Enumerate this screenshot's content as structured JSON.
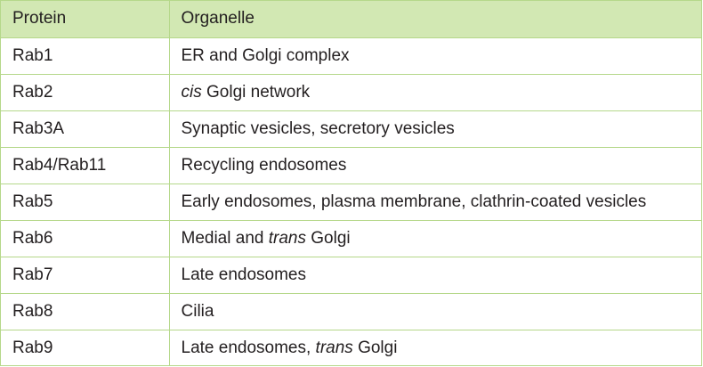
{
  "table": {
    "headers": {
      "protein": "Protein",
      "organelle": "Organelle"
    },
    "rows": [
      {
        "protein": "Rab1",
        "organelle": [
          {
            "text": "ER and Golgi complex"
          }
        ]
      },
      {
        "protein": "Rab2",
        "organelle": [
          {
            "text": "cis",
            "italic": true
          },
          {
            "text": " Golgi network"
          }
        ]
      },
      {
        "protein": "Rab3A",
        "organelle": [
          {
            "text": "Synaptic vesicles, secretory vesicles"
          }
        ]
      },
      {
        "protein": "Rab4/Rab11",
        "organelle": [
          {
            "text": "Recycling endosomes"
          }
        ]
      },
      {
        "protein": "Rab5",
        "organelle": [
          {
            "text": "Early endosomes, plasma membrane, clathrin-coated vesicles"
          }
        ]
      },
      {
        "protein": "Rab6",
        "organelle": [
          {
            "text": "Medial and "
          },
          {
            "text": "trans",
            "italic": true
          },
          {
            "text": " Golgi"
          }
        ]
      },
      {
        "protein": "Rab7",
        "organelle": [
          {
            "text": "Late endosomes"
          }
        ]
      },
      {
        "protein": "Rab8",
        "organelle": [
          {
            "text": "Cilia"
          }
        ]
      },
      {
        "protein": "Rab9",
        "organelle": [
          {
            "text": "Late endosomes, "
          },
          {
            "text": "trans",
            "italic": true
          },
          {
            "text": " Golgi"
          }
        ]
      }
    ],
    "colors": {
      "header_bg": "#d2e8b3",
      "border": "#b5d88a",
      "text": "#231f20"
    }
  }
}
